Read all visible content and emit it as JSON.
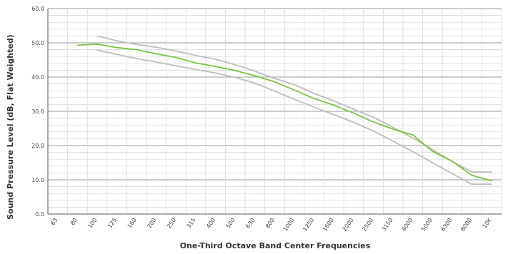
{
  "chart_data": {
    "type": "line",
    "xlabel": "One-Third Octave Band Center Frequencies",
    "ylabel": "Sound Pressure Level (dB, Flat Weighted)",
    "categories": [
      "63",
      "80",
      "100",
      "125",
      "160",
      "200",
      "250",
      "315",
      "400",
      "500",
      "630",
      "800",
      "1000",
      "1250",
      "1600",
      "2000",
      "2500",
      "3150",
      "4000",
      "5000",
      "6300",
      "8000",
      "10K"
    ],
    "y_ticks": [
      "0.0",
      "10.0",
      "20.0",
      "30.0",
      "40.0",
      "50.0",
      "60.0"
    ],
    "ylim": [
      0,
      60
    ],
    "grid": true,
    "grid_minor_step": 2,
    "series": [
      {
        "color": "#bdbdbd",
        "values": [
          null,
          null,
          52.0,
          50.6,
          49.5,
          48.7,
          47.6,
          46.3,
          45.2,
          43.6,
          41.7,
          39.6,
          37.8,
          35.2,
          33.0,
          30.6,
          28.3,
          25.3,
          22.2,
          18.8,
          15.3,
          12.3,
          12.3
        ]
      },
      {
        "color": "#bdbdbd",
        "values": [
          null,
          null,
          47.9,
          46.6,
          45.4,
          44.4,
          43.3,
          42.2,
          41.2,
          39.9,
          38.2,
          35.9,
          33.5,
          31.2,
          29.0,
          26.8,
          24.3,
          21.3,
          18.2,
          15.0,
          11.8,
          8.7,
          8.7
        ]
      },
      {
        "color": "#7cc242",
        "values": [
          null,
          49.3,
          49.6,
          48.6,
          48.0,
          46.8,
          45.7,
          44.1,
          43.1,
          41.9,
          40.4,
          38.6,
          36.2,
          33.7,
          31.8,
          29.5,
          26.9,
          24.8,
          23.1,
          18.3,
          15.4,
          11.3,
          9.7
        ]
      }
    ]
  }
}
